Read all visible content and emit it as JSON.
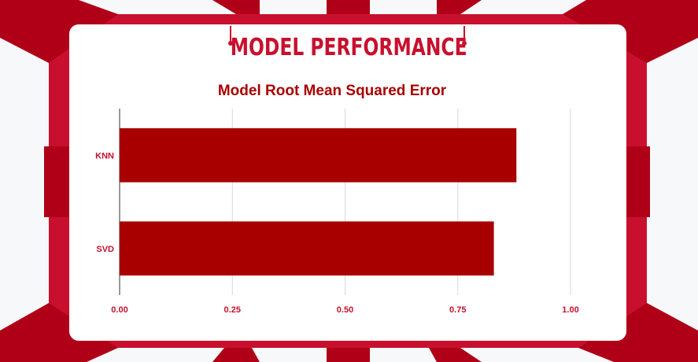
{
  "header": {
    "title": "MODEL PERFORMANCE"
  },
  "colors": {
    "accent": "#c8102e",
    "accent_dark": "#a8001b",
    "bar": "#a80000",
    "grid": "#d9d9d9",
    "card": "#ffffff"
  },
  "chart_data": {
    "type": "bar",
    "orientation": "horizontal",
    "title": "Model Root Mean Squared Error",
    "xlabel": "",
    "ylabel": "",
    "categories": [
      "KNN",
      "SVD"
    ],
    "values": [
      0.88,
      0.83
    ],
    "xlim": [
      0,
      1
    ],
    "xticks": [
      0,
      0.25,
      0.5,
      0.75,
      1
    ],
    "xtick_labels": [
      "0.00",
      "0.25",
      "0.50",
      "0.75",
      "1.00"
    ],
    "grid": true,
    "legend": "none"
  }
}
